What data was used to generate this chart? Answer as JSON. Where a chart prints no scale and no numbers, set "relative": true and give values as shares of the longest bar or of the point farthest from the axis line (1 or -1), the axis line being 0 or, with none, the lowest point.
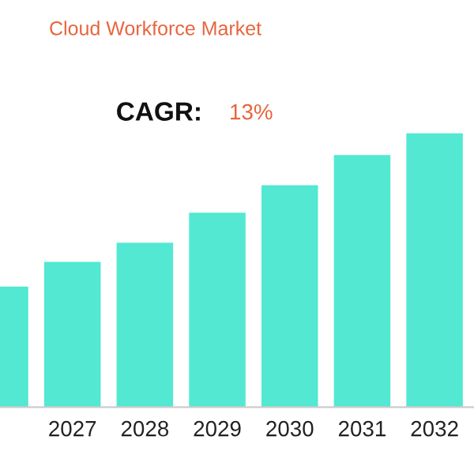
{
  "chart_data": {
    "type": "bar",
    "title": "Cloud Workforce Market",
    "annotations": [
      "CAGR:",
      "13%"
    ],
    "categories": [
      null,
      "2027",
      "2028",
      "2029",
      "2030",
      "2031",
      "2032"
    ],
    "values": [
      0.44,
      0.53,
      0.6,
      0.71,
      0.81,
      0.92,
      1
    ],
    "color": "#52e8d2",
    "relative": true,
    "grid": false,
    "legend": false
  }
}
